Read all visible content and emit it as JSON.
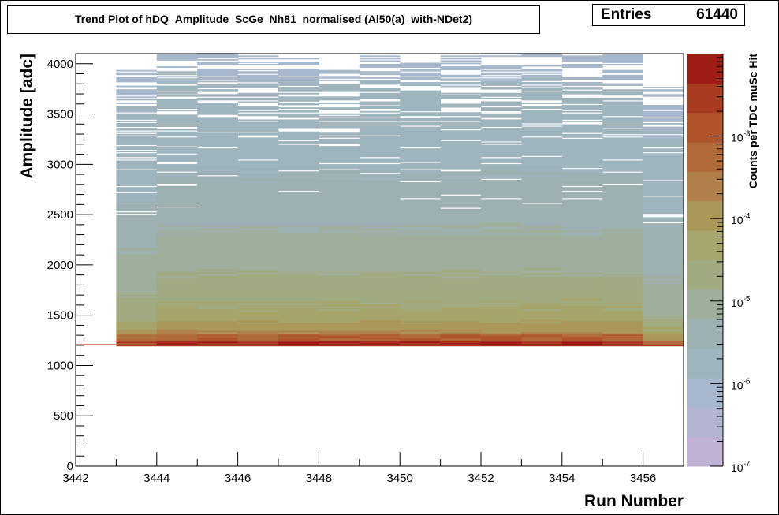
{
  "chart_data": {
    "type": "heatmap",
    "title": "Trend Plot of hDQ_Amplitude_ScGe_Nh81_normalised (Al50(a)_with-NDet2)",
    "xlabel": "Run Number",
    "ylabel": "Amplitude [adc]",
    "zlabel": "Counts per TDC muSc Hit",
    "xlim": [
      3442,
      3457
    ],
    "ylim": [
      0,
      4100
    ],
    "zlim": [
      1e-07,
      0.01
    ],
    "zscale": "log",
    "x_ticks": [
      3442,
      3444,
      3446,
      3448,
      3450,
      3452,
      3454,
      3456
    ],
    "y_ticks": [
      0,
      500,
      1000,
      1500,
      2000,
      2500,
      3000,
      3500,
      4000
    ],
    "z_ticks": [
      {
        "value": 1e-07,
        "label_base": "10",
        "label_exp": "-7"
      },
      {
        "value": 1e-06,
        "label_base": "10",
        "label_exp": "-6"
      },
      {
        "value": 1e-05,
        "label_base": "10",
        "label_exp": "-5"
      },
      {
        "value": 0.0001,
        "label_base": "10",
        "label_exp": "-4"
      },
      {
        "value": 0.001,
        "label_base": "10",
        "label_exp": "-3"
      }
    ],
    "palette": [
      "#bfb2d3",
      "#b4b6d0",
      "#a8b8cc",
      "#9fb5bd",
      "#9db1b3",
      "#a0ae9d",
      "#a1ab82",
      "#a6a56b",
      "#aa985a",
      "#b0804a",
      "#b26a3a",
      "#b0542b",
      "#a83a20",
      "#9c1d14"
    ],
    "runs": [
      {
        "run": 3442,
        "threshold": 1200,
        "max_amplitude": 1205,
        "level": 1.0
      },
      {
        "run": 3443,
        "threshold": 1190,
        "max_amplitude": 3950,
        "level": 0.9
      },
      {
        "run": 3444,
        "threshold": 1190,
        "max_amplitude": 4100,
        "level": 1.0
      },
      {
        "run": 3445,
        "threshold": 1190,
        "max_amplitude": 4100,
        "level": 1.0
      },
      {
        "run": 3446,
        "threshold": 1190,
        "max_amplitude": 4080,
        "level": 1.0
      },
      {
        "run": 3447,
        "threshold": 1190,
        "max_amplitude": 4050,
        "level": 1.0
      },
      {
        "run": 3448,
        "threshold": 1190,
        "max_amplitude": 3950,
        "level": 1.0
      },
      {
        "run": 3449,
        "threshold": 1190,
        "max_amplitude": 4100,
        "level": 1.0
      },
      {
        "run": 3450,
        "threshold": 1190,
        "max_amplitude": 4100,
        "level": 1.0
      },
      {
        "run": 3451,
        "threshold": 1190,
        "max_amplitude": 4100,
        "level": 1.0
      },
      {
        "run": 3452,
        "threshold": 1190,
        "max_amplitude": 4100,
        "level": 1.0
      },
      {
        "run": 3453,
        "threshold": 1190,
        "max_amplitude": 4100,
        "level": 1.0
      },
      {
        "run": 3454,
        "threshold": 1190,
        "max_amplitude": 4080,
        "level": 1.0
      },
      {
        "run": 3455,
        "threshold": 1190,
        "max_amplitude": 4100,
        "level": 1.0
      },
      {
        "run": 3456,
        "threshold": 1190,
        "max_amplitude": 3850,
        "level": 0.8
      }
    ]
  },
  "stats": {
    "entries_label": "Entries",
    "entries_value": "61440"
  }
}
